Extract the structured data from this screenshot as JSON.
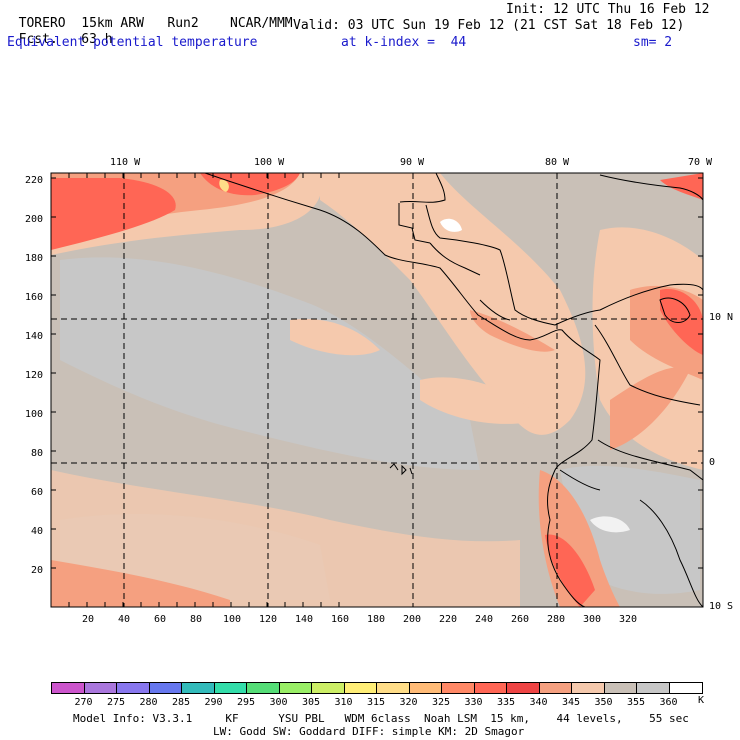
{
  "header": {
    "model": "TORERO",
    "resolution": "15km ARW",
    "run": "Run2",
    "org": "NCAR/MMM",
    "init": "Init: 12 UTC Thu 16 Feb 12",
    "fcst_label": "Fcst.",
    "fcst_value": "63 h",
    "valid": "Valid: 03 UTC Sun 19 Feb 12 (21 CST Sat 18 Feb 12)",
    "field": "Equivalent potential temperature",
    "level": "at k-index =  44",
    "smooth": "sm= 2"
  },
  "map": {
    "top_lon_labels": [
      "110 W",
      "100 W",
      "90 W",
      "80 W",
      "70 W"
    ],
    "right_lat_labels": [
      "10 N",
      "0",
      "10 S"
    ],
    "y_grid_labels": [
      "220",
      "200",
      "180",
      "160",
      "140",
      "120",
      "100",
      "80",
      "60",
      "40",
      "20"
    ],
    "x_grid_labels": [
      "20",
      "40",
      "60",
      "80",
      "100",
      "120",
      "140",
      "160",
      "180",
      "200",
      "220",
      "240",
      "260",
      "280",
      "300",
      "320"
    ]
  },
  "colorbar": {
    "labels": [
      "270",
      "275",
      "280",
      "285",
      "290",
      "295",
      "300",
      "305",
      "310",
      "315",
      "320",
      "325",
      "330",
      "335",
      "340",
      "345",
      "350",
      "355",
      "360"
    ],
    "units": "K",
    "colors": [
      "#cc55cc",
      "#aa77dd",
      "#8877ee",
      "#6677ee",
      "#33bbbb",
      "#33ddaa",
      "#55dd77",
      "#99ee66",
      "#ccee66",
      "#ffee77",
      "#ffdd88",
      "#ffbb77",
      "#ff8866",
      "#ff6655",
      "#ee4444",
      "#f5a080",
      "#f5c9ad",
      "#c9c0b7",
      "#c7c7c7",
      "#ffffff"
    ]
  },
  "footer": {
    "line1": "Model Info: V3.3.1     KF      YSU PBL   WDM 6class  Noah LSM  15 km,    44 levels,    55 sec",
    "line2": "LW: Godd SW: Goddard DIFF: simple KM: 2D Smagor"
  }
}
